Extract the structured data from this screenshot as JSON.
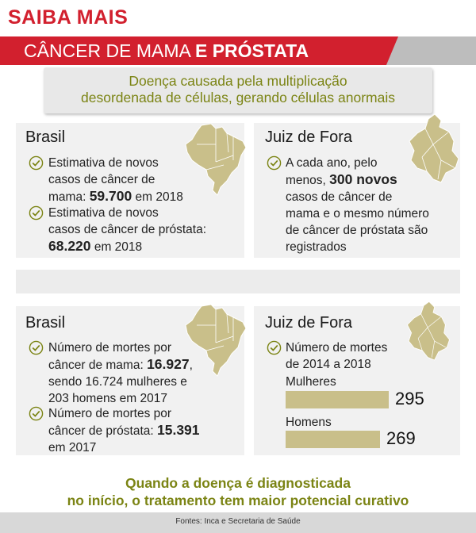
{
  "header": {
    "title": "SAIBA MAIS",
    "banner_part1": "CÂNCER DE MAMA ",
    "banner_part2": "E PRÓSTATA"
  },
  "intro": {
    "line1": "Doença causada pela multiplicação",
    "line2": "desordenada de células, gerando células anormais"
  },
  "top": {
    "brasil": {
      "heading": "Brasil",
      "item1": {
        "l1": "Estimativa de novos",
        "l2": "casos de câncer de",
        "l3a": "mama: ",
        "l3b": "59.700",
        "l3c": " em 2018"
      },
      "item2": {
        "l1": "Estimativa de novos",
        "l2": "casos de câncer de próstata:",
        "l3b": "68.220",
        "l3c": " em 2018"
      }
    },
    "jf": {
      "heading": "Juiz de Fora",
      "l1": "A cada ano, pelo",
      "l2a": "menos, ",
      "l2b": "300 novos",
      "l3": "casos de câncer de",
      "l4": "mama e o mesmo número",
      "l5": "de câncer de próstata são",
      "l6": "registrados"
    }
  },
  "bottom": {
    "brasil": {
      "heading": "Brasil",
      "item1": {
        "l1": "Número de mortes por",
        "l2a": "câncer de mama: ",
        "l2b": "16.927",
        "l2c": ",",
        "l3": "sendo 16.724 mulheres e",
        "l4": "203 homens em 2017"
      },
      "item2": {
        "l1": "Número de mortes por",
        "l2a": "câncer de próstata: ",
        "l2b": "15.391",
        "l3": "em 2017"
      }
    },
    "jf": {
      "heading": "Juiz de Fora",
      "l1": "Número de mortes",
      "l2": "de 2014 a 2018",
      "bars": [
        {
          "label": "Mulheres",
          "value": 295,
          "display": "295"
        },
        {
          "label": "Homens",
          "value": 269,
          "display": "269"
        }
      ]
    }
  },
  "footer": {
    "line1": "Quando a doença é diagnosticada",
    "line2": "no início, o tratamento tem maior potencial curativo"
  },
  "source": "Fontes: Inca e Secretaria de Saúde",
  "colors": {
    "red": "#d2202e",
    "olive": "#7b8414",
    "map": "#c9bf8a"
  }
}
